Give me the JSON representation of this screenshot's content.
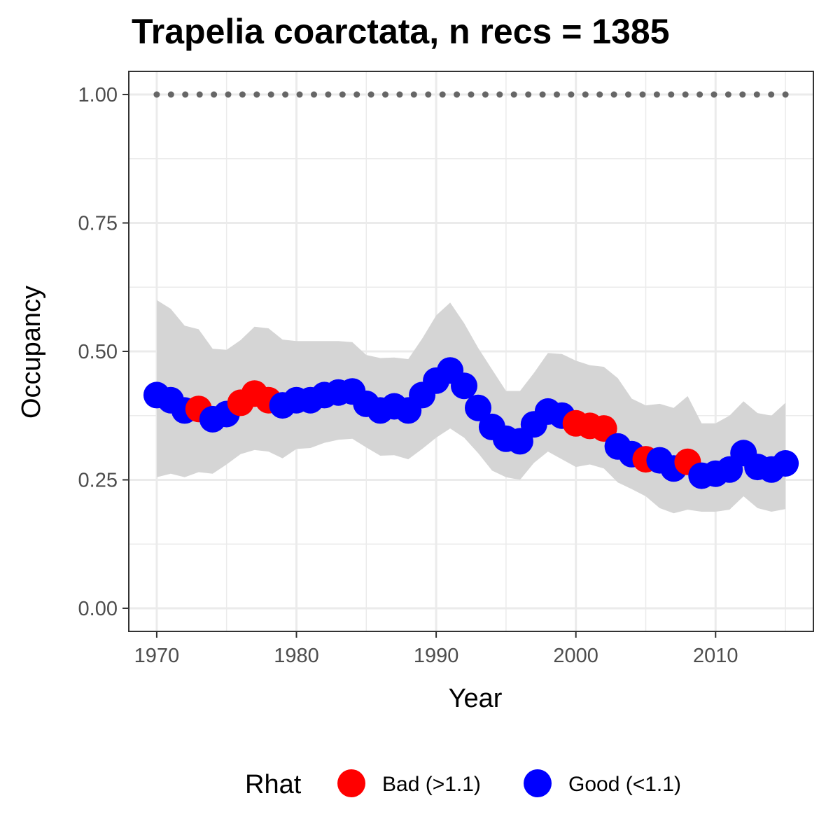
{
  "chart_data": {
    "type": "line",
    "title": "Trapelia coarctata, n recs = 1385",
    "xlabel": "Year",
    "ylabel": "Occupancy",
    "xlim": [
      1968,
      2017
    ],
    "ylim": [
      -0.045,
      1.045
    ],
    "x_ticks": [
      1970,
      1980,
      1990,
      2000,
      2010
    ],
    "x_tick_labels": [
      "1970",
      "1980",
      "1990",
      "2000",
      "2010"
    ],
    "y_ticks": [
      0,
      0.25,
      0.5,
      0.75,
      1.0
    ],
    "y_tick_labels": [
      "0.00",
      "0.25",
      "0.50",
      "0.75",
      "1.00"
    ],
    "grid": true,
    "legend": {
      "title": "Rhat",
      "position": "bottom",
      "entries": [
        {
          "label": "Bad (>1.1)",
          "color": "#ff0000"
        },
        {
          "label": "Good (<1.1)",
          "color": "#0000ff"
        }
      ]
    },
    "reference_line": {
      "y": 1.0,
      "style": "dotted",
      "color": "#666666",
      "x_range": [
        1970,
        2015
      ]
    },
    "ribbon_color": "#d5d5d5",
    "x": [
      1970,
      1971,
      1972,
      1973,
      1974,
      1975,
      1976,
      1977,
      1978,
      1979,
      1980,
      1981,
      1982,
      1983,
      1984,
      1985,
      1986,
      1987,
      1988,
      1989,
      1990,
      1991,
      1992,
      1993,
      1994,
      1995,
      1996,
      1997,
      1998,
      1999,
      2000,
      2001,
      2002,
      2003,
      2004,
      2005,
      2006,
      2007,
      2008,
      2009,
      2010,
      2011,
      2012,
      2013,
      2014,
      2015
    ],
    "occupancy": [
      0.415,
      0.405,
      0.385,
      0.388,
      0.368,
      0.378,
      0.4,
      0.418,
      0.405,
      0.395,
      0.405,
      0.405,
      0.415,
      0.42,
      0.422,
      0.398,
      0.385,
      0.393,
      0.385,
      0.415,
      0.443,
      0.463,
      0.433,
      0.39,
      0.353,
      0.33,
      0.325,
      0.358,
      0.383,
      0.375,
      0.36,
      0.355,
      0.35,
      0.315,
      0.3,
      0.29,
      0.288,
      0.272,
      0.285,
      0.258,
      0.262,
      0.27,
      0.302,
      0.275,
      0.27,
      0.282
    ],
    "lower": [
      0.255,
      0.262,
      0.255,
      0.265,
      0.262,
      0.28,
      0.3,
      0.308,
      0.305,
      0.292,
      0.31,
      0.312,
      0.322,
      0.328,
      0.33,
      0.313,
      0.297,
      0.298,
      0.29,
      0.31,
      0.332,
      0.35,
      0.332,
      0.302,
      0.268,
      0.255,
      0.25,
      0.283,
      0.305,
      0.29,
      0.275,
      0.28,
      0.272,
      0.245,
      0.232,
      0.218,
      0.195,
      0.185,
      0.192,
      0.188,
      0.188,
      0.192,
      0.218,
      0.195,
      0.188,
      0.193
    ],
    "upper": [
      0.6,
      0.583,
      0.55,
      0.543,
      0.505,
      0.503,
      0.522,
      0.548,
      0.545,
      0.523,
      0.52,
      0.52,
      0.52,
      0.52,
      0.518,
      0.493,
      0.487,
      0.488,
      0.485,
      0.525,
      0.57,
      0.595,
      0.555,
      0.507,
      0.465,
      0.423,
      0.423,
      0.458,
      0.497,
      0.495,
      0.482,
      0.473,
      0.47,
      0.448,
      0.408,
      0.395,
      0.398,
      0.39,
      0.413,
      0.36,
      0.36,
      0.375,
      0.403,
      0.38,
      0.375,
      0.4
    ],
    "rhat": [
      "Good",
      "Good",
      "Good",
      "Bad",
      "Good",
      "Good",
      "Bad",
      "Bad",
      "Bad",
      "Good",
      "Good",
      "Good",
      "Good",
      "Good",
      "Good",
      "Good",
      "Good",
      "Good",
      "Good",
      "Good",
      "Good",
      "Good",
      "Good",
      "Good",
      "Good",
      "Good",
      "Good",
      "Good",
      "Good",
      "Good",
      "Bad",
      "Bad",
      "Bad",
      "Good",
      "Good",
      "Bad",
      "Good",
      "Good",
      "Bad",
      "Good",
      "Good",
      "Good",
      "Good",
      "Good",
      "Good",
      "Good"
    ]
  }
}
